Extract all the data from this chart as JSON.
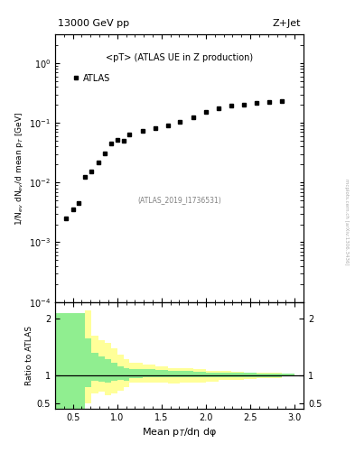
{
  "title_left": "13000 GeV pp",
  "title_right": "Z+Jet",
  "annotation": "<pT> (ATLAS UE in Z production)",
  "ref_label": "(ATLAS_2019_I1736531)",
  "ylabel_main": "1/N$_{ev}$ dN$_{ev}$/d mean p$_{T}$ [GeV]",
  "ylabel_ratio": "Ratio to ATLAS",
  "xlabel": "Mean p$_{T}$/dη dφ",
  "legend_label": "ATLAS",
  "watermark": "mcplots.cern.ch [arXiv:1306.3436]",
  "data_x": [
    0.42,
    0.5,
    0.57,
    0.64,
    0.71,
    0.79,
    0.86,
    0.93,
    1.0,
    1.07,
    1.14,
    1.29,
    1.43,
    1.57,
    1.71,
    1.86,
    2.0,
    2.14,
    2.29,
    2.43,
    2.57,
    2.71,
    2.86
  ],
  "data_y": [
    0.0025,
    0.0035,
    0.0045,
    0.0125,
    0.0155,
    0.022,
    0.031,
    0.045,
    0.052,
    0.05,
    0.063,
    0.073,
    0.082,
    0.09,
    0.105,
    0.125,
    0.155,
    0.175,
    0.195,
    0.205,
    0.215,
    0.225,
    0.235
  ],
  "ylim_main": [
    0.0001,
    3.0
  ],
  "ylim_ratio": [
    0.4,
    2.3
  ],
  "xlim": [
    0.3,
    3.1
  ],
  "ratio_bin_edges": [
    0.3,
    0.64,
    0.71,
    0.79,
    0.86,
    0.93,
    1.0,
    1.07,
    1.14,
    1.29,
    1.43,
    1.57,
    1.71,
    1.86,
    2.0,
    2.14,
    2.29,
    2.43,
    2.57,
    2.71,
    2.86,
    3.0
  ],
  "ratio_green_lo": [
    0.4,
    0.78,
    0.9,
    0.88,
    0.87,
    0.9,
    0.92,
    0.9,
    0.95,
    0.97,
    0.97,
    0.97,
    0.97,
    0.97,
    0.97,
    0.97,
    0.97,
    0.97,
    0.97,
    0.97,
    0.98
  ],
  "ratio_green_hi": [
    2.1,
    1.65,
    1.4,
    1.33,
    1.28,
    1.22,
    1.15,
    1.12,
    1.1,
    1.1,
    1.09,
    1.08,
    1.07,
    1.06,
    1.05,
    1.05,
    1.04,
    1.04,
    1.03,
    1.03,
    1.02
  ],
  "ratio_yellow_lo": [
    0.4,
    0.5,
    0.68,
    0.7,
    0.65,
    0.68,
    0.72,
    0.78,
    0.86,
    0.87,
    0.86,
    0.85,
    0.86,
    0.87,
    0.89,
    0.91,
    0.92,
    0.93,
    0.94,
    0.95,
    0.98
  ],
  "ratio_yellow_hi": [
    2.1,
    2.15,
    1.7,
    1.62,
    1.58,
    1.47,
    1.37,
    1.28,
    1.22,
    1.18,
    1.15,
    1.13,
    1.12,
    1.1,
    1.08,
    1.07,
    1.06,
    1.05,
    1.04,
    1.04,
    1.02
  ],
  "marker_color": "#000000",
  "marker": "s",
  "marker_size": 3.5,
  "green_color": "#90EE90",
  "yellow_color": "#FFFF99",
  "bg_color": "#ffffff"
}
